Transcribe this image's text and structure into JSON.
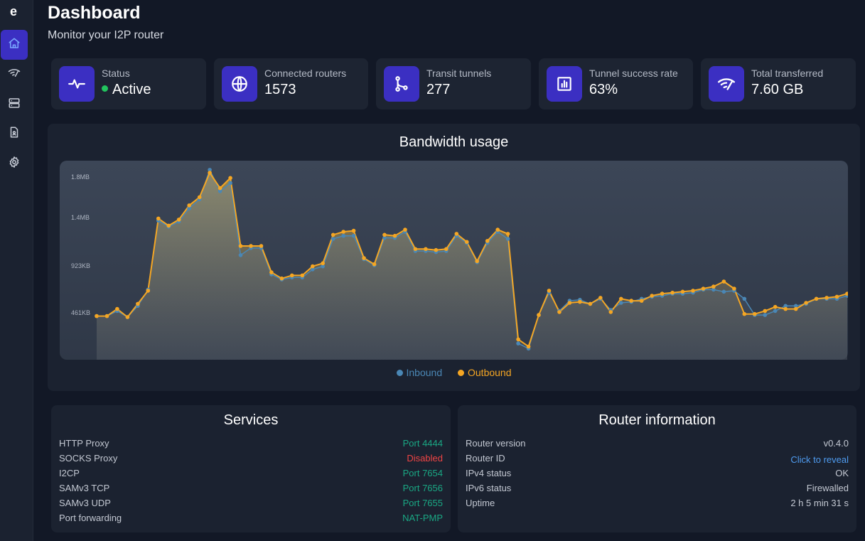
{
  "sidebar": {
    "logo": "e",
    "items": [
      {
        "name": "home",
        "icon": "home-icon",
        "active": true
      },
      {
        "name": "network",
        "icon": "wifi-signal-icon",
        "active": false
      },
      {
        "name": "servers",
        "icon": "server-icon",
        "active": false
      },
      {
        "name": "logs",
        "icon": "document-person-icon",
        "active": false
      },
      {
        "name": "settings",
        "icon": "gear-icon",
        "active": false
      }
    ]
  },
  "header": {
    "title": "Dashboard",
    "subtitle": "Monitor your I2P router"
  },
  "stats": [
    {
      "label": "Status",
      "value": "Active",
      "icon": "activity-pulse-icon"
    },
    {
      "label": "Connected routers",
      "value": "1573",
      "icon": "globe-icon"
    },
    {
      "label": "Transit tunnels",
      "value": "277",
      "icon": "git-fork-icon"
    },
    {
      "label": "Tunnel success rate",
      "value": "63%",
      "icon": "bar-chart-icon"
    },
    {
      "label": "Total transferred",
      "value": "7.60 GB",
      "icon": "wifi-signal-icon"
    }
  ],
  "colors": {
    "accent": "#3b2fc2",
    "inbound": "#4a87b5",
    "outbound": "#f5a623",
    "status_active": "#22c55e",
    "port_ok": "#1aa884",
    "disabled": "#ef4444",
    "link": "#4f9cf0"
  },
  "chart_data": {
    "type": "area",
    "title": "Bandwidth usage",
    "ytick_labels": [
      "1.8MB",
      "1.4MB",
      "923KB",
      "461KB"
    ],
    "ytick_values": [
      1800,
      1400,
      923,
      461
    ],
    "ylim": [
      0,
      1960
    ],
    "grid": false,
    "legend_position": "bottom",
    "series": [
      {
        "name": "Inbound",
        "values": [
          430,
          430,
          480,
          420,
          530,
          690,
          1370,
          1310,
          1360,
          1490,
          1580,
          1870,
          1660,
          1740,
          1030,
          1100,
          1100,
          840,
          790,
          810,
          810,
          890,
          920,
          1190,
          1220,
          1220,
          990,
          930,
          1200,
          1200,
          1260,
          1070,
          1070,
          1060,
          1070,
          1220,
          1150,
          960,
          1150,
          1260,
          1190,
          160,
          110,
          440,
          660,
          480,
          580,
          590,
          550,
          600,
          490,
          560,
          570,
          600,
          620,
          630,
          650,
          650,
          660,
          690,
          690,
          670,
          680,
          600,
          440,
          440,
          480,
          530,
          530,
          550,
          600,
          600,
          600,
          630
        ]
      },
      {
        "name": "Outbound",
        "values": [
          430,
          430,
          500,
          420,
          550,
          680,
          1390,
          1320,
          1380,
          1520,
          1600,
          1840,
          1690,
          1790,
          1120,
          1120,
          1120,
          860,
          800,
          830,
          830,
          920,
          950,
          1230,
          1260,
          1270,
          1000,
          940,
          1230,
          1220,
          1280,
          1090,
          1090,
          1080,
          1090,
          1240,
          1160,
          970,
          1170,
          1280,
          1240,
          200,
          130,
          440,
          680,
          470,
          560,
          570,
          550,
          610,
          470,
          600,
          580,
          580,
          630,
          650,
          660,
          670,
          680,
          700,
          720,
          770,
          700,
          450,
          450,
          480,
          520,
          500,
          500,
          560,
          600,
          610,
          620,
          650
        ]
      }
    ]
  },
  "legend": {
    "inbound": "Inbound",
    "outbound": "Outbound"
  },
  "services": {
    "title": "Services",
    "rows": [
      {
        "key": "HTTP Proxy",
        "value": "Port 4444",
        "state": "ok"
      },
      {
        "key": "SOCKS Proxy",
        "value": "Disabled",
        "state": "disabled"
      },
      {
        "key": "I2CP",
        "value": "Port 7654",
        "state": "ok"
      },
      {
        "key": "SAMv3 TCP",
        "value": "Port 7656",
        "state": "ok"
      },
      {
        "key": "SAMv3 UDP",
        "value": "Port 7655",
        "state": "ok"
      },
      {
        "key": "Port forwarding",
        "value": "NAT-PMP",
        "state": "ok"
      }
    ]
  },
  "router_info": {
    "title": "Router information",
    "rows": [
      {
        "key": "Router version",
        "value": "v0.4.0",
        "state": "plain"
      },
      {
        "key": "Router ID",
        "value": "Click to reveal",
        "state": "link"
      },
      {
        "key": "IPv4 status",
        "value": "OK",
        "state": "plain"
      },
      {
        "key": "IPv6 status",
        "value": "Firewalled",
        "state": "plain"
      },
      {
        "key": "Uptime",
        "value": "2 h 5 min 31 s",
        "state": "plain"
      }
    ]
  }
}
